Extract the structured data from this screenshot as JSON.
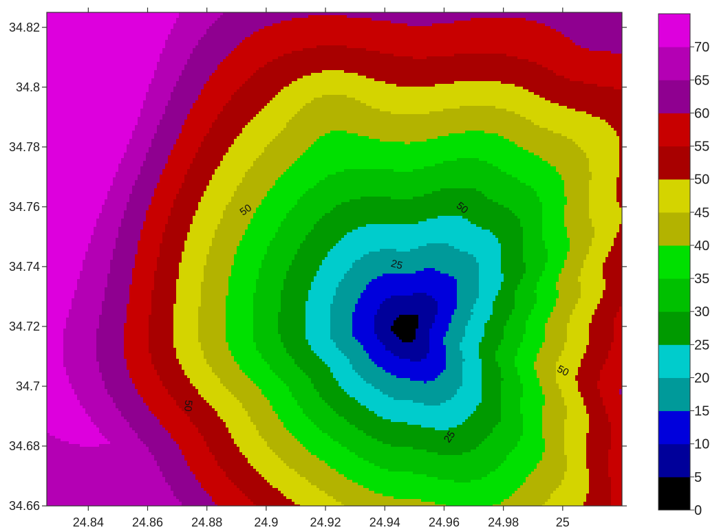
{
  "chart_data": {
    "type": "contour",
    "title": "",
    "xlabel": "",
    "ylabel": "",
    "xlim": [
      24.826,
      25.02
    ],
    "ylim": [
      34.66,
      34.825
    ],
    "x_ticks": [
      {
        "value": 24.84,
        "label": "24.84"
      },
      {
        "value": 24.86,
        "label": "24.86"
      },
      {
        "value": 24.88,
        "label": "24.88"
      },
      {
        "value": 24.9,
        "label": "24.9"
      },
      {
        "value": 24.92,
        "label": "24.92"
      },
      {
        "value": 24.94,
        "label": "24.94"
      },
      {
        "value": 24.96,
        "label": "24.96"
      },
      {
        "value": 24.98,
        "label": "24.98"
      },
      {
        "value": 25,
        "label": "25"
      }
    ],
    "y_ticks": [
      {
        "value": 34.66,
        "label": "34.66"
      },
      {
        "value": 34.68,
        "label": "34.68"
      },
      {
        "value": 34.7,
        "label": "34.7"
      },
      {
        "value": 34.72,
        "label": "34.72"
      },
      {
        "value": 34.74,
        "label": "34.74"
      },
      {
        "value": 34.76,
        "label": "34.76"
      },
      {
        "value": 34.78,
        "label": "34.78"
      },
      {
        "value": 34.8,
        "label": "34.8"
      },
      {
        "value": 34.82,
        "label": "34.82"
      }
    ],
    "field": {
      "minimum": {
        "x": 24.947,
        "y": 34.719,
        "value": 0
      },
      "background_value": 62,
      "upper_left_value": 68
    },
    "levels": [
      {
        "from": 0,
        "to": 5,
        "color": "#000000"
      },
      {
        "from": 5,
        "to": 10,
        "color": "#00009a"
      },
      {
        "from": 10,
        "to": 15,
        "color": "#0000dc"
      },
      {
        "from": 15,
        "to": 20,
        "color": "#009a9a"
      },
      {
        "from": 20,
        "to": 25,
        "color": "#00cccc"
      },
      {
        "from": 25,
        "to": 30,
        "color": "#009a00"
      },
      {
        "from": 30,
        "to": 35,
        "color": "#00c000"
      },
      {
        "from": 35,
        "to": 40,
        "color": "#00e000"
      },
      {
        "from": 40,
        "to": 45,
        "color": "#b3b300"
      },
      {
        "from": 45,
        "to": 50,
        "color": "#d4d400"
      },
      {
        "from": 50,
        "to": 55,
        "color": "#a80000"
      },
      {
        "from": 55,
        "to": 60,
        "color": "#c80000"
      },
      {
        "from": 60,
        "to": 65,
        "color": "#8f0090"
      },
      {
        "from": 65,
        "to": 70,
        "color": "#b400b4"
      },
      {
        "from": 70,
        "to": 75,
        "color": "#dd00dd"
      }
    ],
    "colorbar": {
      "labels": [
        "0",
        "5",
        "10",
        "15",
        "20",
        "25",
        "30",
        "35",
        "40",
        "45",
        "50",
        "55",
        "60",
        "65",
        "70"
      ]
    },
    "contour_labels": [
      {
        "text": "50",
        "x": 24.8932,
        "y": 34.7588,
        "angle": -35
      },
      {
        "text": "25",
        "x": 24.944,
        "y": 34.7405,
        "angle": 15
      },
      {
        "text": "50",
        "x": 24.966,
        "y": 34.7595,
        "angle": 40
      },
      {
        "text": "50",
        "x": 24.8735,
        "y": 34.6935,
        "angle": 95
      },
      {
        "text": "50",
        "x": 25.0,
        "y": 34.705,
        "angle": 28
      },
      {
        "text": "25",
        "x": 24.962,
        "y": 34.683,
        "angle": -55
      }
    ]
  }
}
